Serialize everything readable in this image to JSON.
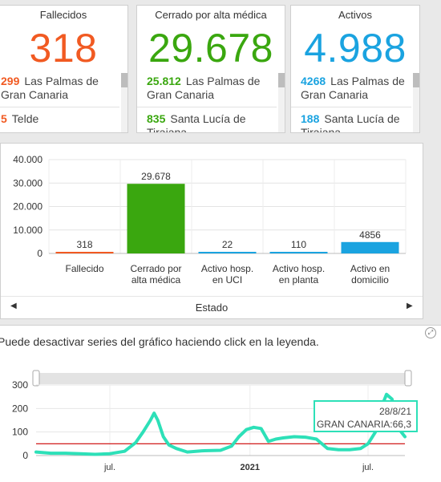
{
  "cards": [
    {
      "title": "Fallecidos",
      "value": "318",
      "color": "#f15a22",
      "items": [
        {
          "num": "299",
          "name": "Las Palmas de Gran Canaria"
        },
        {
          "num": "5",
          "name": "Telde"
        }
      ]
    },
    {
      "title": "Cerrado por alta médica",
      "value": "29.678",
      "color": "#3aa70f",
      "items": [
        {
          "num": "25.812",
          "name": "Las Palmas de Gran Canaria"
        },
        {
          "num": "835",
          "name": "Santa Lucía de Tirajana"
        }
      ]
    },
    {
      "title": "Activos",
      "value": "4.988",
      "color": "#1aa3e0",
      "items": [
        {
          "num": "4268",
          "name": "Las Palmas de Gran Canaria"
        },
        {
          "num": "188",
          "name": "Santa Lucía de Tirajana"
        }
      ]
    }
  ],
  "bar_chart": {
    "xlabel": "Estado",
    "nav_left": "◀",
    "nav_right": "▶"
  },
  "hint": "Puede desactivar series del gráfico haciendo click en la leyenda.",
  "expand_icon": "⤢",
  "tooltip": {
    "date": "28/8/21",
    "text": "GRAN CANARIA:66,3"
  },
  "chart_data": [
    {
      "type": "bar",
      "categories": [
        "Fallecido",
        "Cerrado por alta médica",
        "Activo hosp. en UCI",
        "Activo hosp. en planta",
        "Activo en domicilio"
      ],
      "category_lines": [
        [
          "Fallecido"
        ],
        [
          "Cerrado por",
          "alta médica"
        ],
        [
          "Activo hosp.",
          "en UCI"
        ],
        [
          "Activo hosp.",
          "en planta"
        ],
        [
          "Activo en",
          "domicilio"
        ]
      ],
      "values": [
        318,
        29678,
        22,
        110,
        4856
      ],
      "value_labels": [
        "318",
        "29.678",
        "22",
        "110",
        "4856"
      ],
      "colors": [
        "#f15a22",
        "#3aa70f",
        "#1aa3e0",
        "#1aa3e0",
        "#1aa3e0"
      ],
      "xlabel": "Estado",
      "ylim": [
        0,
        40000
      ],
      "yticks": [
        0,
        10000,
        20000,
        30000,
        40000
      ],
      "ytick_labels": [
        "0",
        "10.000",
        "20.000",
        "30.000",
        "40.000"
      ]
    },
    {
      "type": "line",
      "ylim": [
        0,
        300
      ],
      "yticks": [
        0,
        100,
        200,
        300
      ],
      "ytick_labels": [
        "0",
        "100",
        "200",
        "300"
      ],
      "xtick_labels": [
        "jul.",
        "2021",
        "jul."
      ],
      "xtick_pos": [
        0.2,
        0.58,
        0.9
      ],
      "threshold": 50,
      "series_color": "#2de0b8",
      "threshold_color": "#cc0000",
      "x": [
        0,
        0.04,
        0.08,
        0.12,
        0.16,
        0.2,
        0.24,
        0.27,
        0.29,
        0.31,
        0.32,
        0.33,
        0.345,
        0.36,
        0.38,
        0.41,
        0.45,
        0.5,
        0.53,
        0.55,
        0.57,
        0.59,
        0.61,
        0.63,
        0.65,
        0.67,
        0.7,
        0.73,
        0.76,
        0.79,
        0.82,
        0.85,
        0.88,
        0.9,
        0.92,
        0.935,
        0.95,
        0.965,
        0.98,
        1.0
      ],
      "values": [
        15,
        10,
        10,
        8,
        5,
        8,
        18,
        55,
        100,
        150,
        180,
        150,
        80,
        45,
        30,
        15,
        20,
        22,
        40,
        80,
        110,
        120,
        115,
        60,
        70,
        75,
        80,
        78,
        70,
        30,
        25,
        25,
        30,
        50,
        100,
        200,
        260,
        240,
        120,
        80
      ]
    }
  ]
}
